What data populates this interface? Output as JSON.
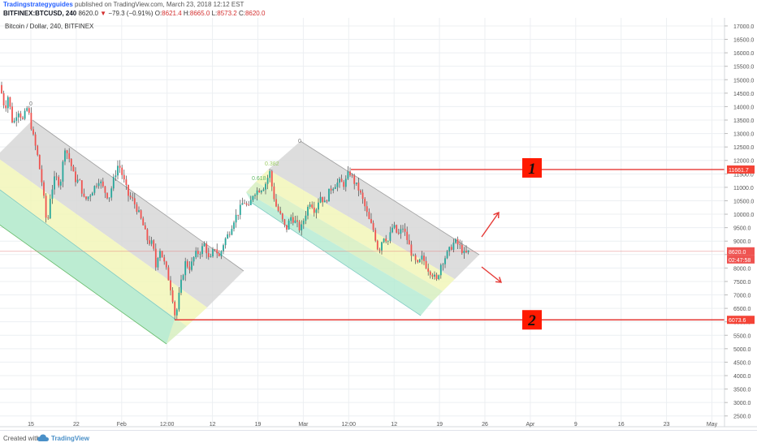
{
  "header": {
    "author": "Tradingstrategyguides",
    "published": " published on TradingView.com, March 23, 2018 12:12 EST",
    "symbol": "BITFINEX:BTCUSD, 240",
    "last": "8620.0",
    "down_arrow": "▼",
    "change": "−79.3 (−0.91%)",
    "o_label": "O:",
    "o_value": "8621.4",
    "h_label": "H:",
    "h_value": "8665.0",
    "l_label": "L:",
    "l_value": "8573.2",
    "c_label": "C:",
    "c_value": "8620.0"
  },
  "chart_title": "Bitcoin / Dollar, 240, BITFINEX",
  "footer": {
    "created_label": "Created with",
    "brand": "TradingView"
  },
  "colors": {
    "grid": "#eceff2",
    "price_line": "#e57373",
    "level_line": "#e53935",
    "label_box": "#f44336",
    "up": "#26a69a",
    "down": "#ef5350",
    "wick": "#4a4a4a",
    "fib_gray": "#d7d7d7",
    "fib_yellow": "#f2f6b8",
    "fib_lightgreen": "#d7efc0",
    "fib_green": "#b6ebd3",
    "arrow": "#e53935",
    "marker_box": "#ff1a00"
  },
  "annotations": {
    "fib_labels": [
      "0",
      "0.382",
      "0.618"
    ],
    "channel2_zero": "0",
    "marker1": "1",
    "marker2": "2",
    "price_tag_current": "8620.0",
    "price_tag_timer": "02:47:58",
    "price_tag_level1": "11661.7",
    "price_tag_level2": "6073.6"
  },
  "chart_data": {
    "type": "candlestick",
    "title": "Bitcoin / Dollar, 240, BITFINEX",
    "y_ticks": [
      "17000.0",
      "16500.0",
      "16000.0",
      "15500.0",
      "15000.0",
      "14500.0",
      "14000.0",
      "13500.0",
      "13000.0",
      "12500.0",
      "12000.0",
      "11500.0",
      "11000.0",
      "10500.0",
      "10000.0",
      "9500.0",
      "9000.0",
      "8500.0",
      "8000.0",
      "7500.0",
      "7000.0",
      "6500.0",
      "6000.0",
      "5500.0",
      "5000.0",
      "4500.0",
      "4000.0",
      "3500.0",
      "3000.0",
      "2500.0"
    ],
    "ylim": [
      2100,
      17300
    ],
    "x_ticks": [
      "15",
      "22",
      "Feb",
      "12:00",
      "12",
      "19",
      "Mar",
      "12:00",
      "12",
      "19",
      "26",
      "Apr",
      "9",
      "16",
      "23",
      "May"
    ],
    "levels": [
      {
        "label": "1",
        "value": 11661.7
      },
      {
        "label": "2",
        "value": 6073.6
      }
    ],
    "current_price": 8620.0,
    "close_path": [
      [
        0,
        14800
      ],
      [
        6,
        13900
      ],
      [
        10,
        14400
      ],
      [
        16,
        13300
      ],
      [
        22,
        13900
      ],
      [
        28,
        13500
      ],
      [
        34,
        14000
      ],
      [
        40,
        13000
      ],
      [
        46,
        12200
      ],
      [
        52,
        11100
      ],
      [
        58,
        9500
      ],
      [
        62,
        10700
      ],
      [
        68,
        11400
      ],
      [
        74,
        11100
      ],
      [
        80,
        12500
      ],
      [
        86,
        12000
      ],
      [
        92,
        11300
      ],
      [
        98,
        11200
      ],
      [
        104,
        10500
      ],
      [
        110,
        10700
      ],
      [
        116,
        11000
      ],
      [
        122,
        11300
      ],
      [
        128,
        10900
      ],
      [
        134,
        10600
      ],
      [
        140,
        11300
      ],
      [
        146,
        11900
      ],
      [
        152,
        11300
      ],
      [
        158,
        10700
      ],
      [
        164,
        10500
      ],
      [
        170,
        10100
      ],
      [
        176,
        9600
      ],
      [
        182,
        9000
      ],
      [
        188,
        8900
      ],
      [
        192,
        8000
      ],
      [
        196,
        8800
      ],
      [
        200,
        8400
      ],
      [
        206,
        7800
      ],
      [
        212,
        7000
      ],
      [
        216,
        6100
      ],
      [
        222,
        7300
      ],
      [
        228,
        8200
      ],
      [
        234,
        8000
      ],
      [
        240,
        8500
      ],
      [
        246,
        8600
      ],
      [
        252,
        8900
      ],
      [
        258,
        8200
      ],
      [
        264,
        8800
      ],
      [
        270,
        8400
      ],
      [
        276,
        9000
      ],
      [
        282,
        9300
      ],
      [
        288,
        9800
      ],
      [
        294,
        10100
      ],
      [
        300,
        10500
      ],
      [
        306,
        10200
      ],
      [
        312,
        10800
      ],
      [
        318,
        10900
      ],
      [
        324,
        11000
      ],
      [
        328,
        11200
      ],
      [
        332,
        11600
      ],
      [
        336,
        10800
      ],
      [
        340,
        10300
      ],
      [
        346,
        9900
      ],
      [
        352,
        9400
      ],
      [
        358,
        9900
      ],
      [
        364,
        9700
      ],
      [
        370,
        9400
      ],
      [
        376,
        10000
      ],
      [
        382,
        10500
      ],
      [
        388,
        10100
      ],
      [
        394,
        10700
      ],
      [
        400,
        10400
      ],
      [
        406,
        10900
      ],
      [
        412,
        11100
      ],
      [
        418,
        11200
      ],
      [
        424,
        11100
      ],
      [
        430,
        11600
      ],
      [
        436,
        11200
      ],
      [
        442,
        10900
      ],
      [
        448,
        10400
      ],
      [
        454,
        9800
      ],
      [
        460,
        9400
      ],
      [
        466,
        8600
      ],
      [
        472,
        9200
      ],
      [
        478,
        9000
      ],
      [
        484,
        9600
      ],
      [
        490,
        9200
      ],
      [
        496,
        9500
      ],
      [
        502,
        9000
      ],
      [
        508,
        8400
      ],
      [
        514,
        8100
      ],
      [
        520,
        8400
      ],
      [
        526,
        8000
      ],
      [
        532,
        7800
      ],
      [
        538,
        7500
      ],
      [
        542,
        8100
      ],
      [
        548,
        8400
      ],
      [
        554,
        8700
      ],
      [
        560,
        9000
      ],
      [
        566,
        8800
      ],
      [
        572,
        8500
      ],
      [
        578,
        8620
      ]
    ]
  }
}
